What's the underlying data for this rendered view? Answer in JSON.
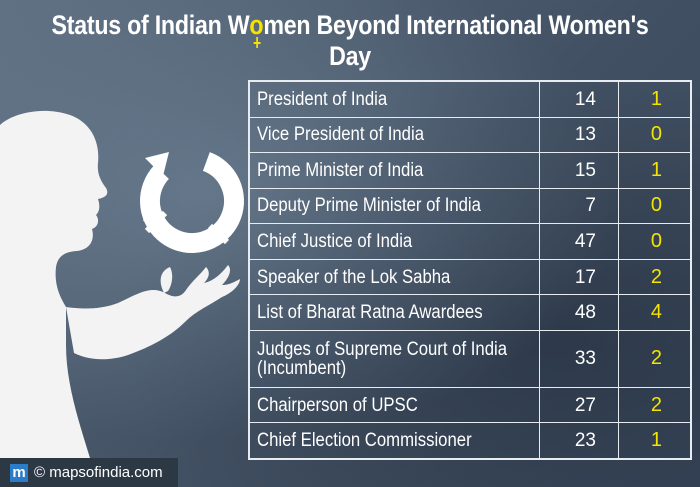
{
  "title": {
    "before": "Status of Indian W",
    "symbol_letter": "o",
    "after": "men Beyond International Women's Day"
  },
  "rows": [
    {
      "label": "President of India",
      "total": "14",
      "women": "1"
    },
    {
      "label": "Vice President of India",
      "total": "13",
      "women": "0"
    },
    {
      "label": "Prime Minister of India",
      "total": "15",
      "women": "1"
    },
    {
      "label": "Deputy Prime Minister of India",
      "total": "7",
      "women": "0"
    },
    {
      "label": "Chief Justice of India",
      "total": "47",
      "women": "0"
    },
    {
      "label": "Speaker of the Lok Sabha",
      "total": "17",
      "women": "2"
    },
    {
      "label": "List of Bharat Ratna Awardees",
      "total": "48",
      "women": "4"
    },
    {
      "label": "Judges of Supreme Court of India (Incumbent)",
      "total": "33",
      "women": "2"
    },
    {
      "label": "Chairperson of UPSC",
      "total": "27",
      "women": "2"
    },
    {
      "label": "Chief Election Commissioner",
      "total": "23",
      "women": "1"
    }
  ],
  "footer": {
    "logo_letter": "m",
    "copyright": "©",
    "site": "mapsofindia.com"
  },
  "icons": {
    "title_symbol": "female-symbol-icon",
    "illustration": "gender-symbol-icon",
    "figure": "woman-silhouette"
  },
  "colors": {
    "accent_yellow": "#f4e400",
    "text": "#ffffff",
    "logo_blue": "#2b7cc9"
  }
}
